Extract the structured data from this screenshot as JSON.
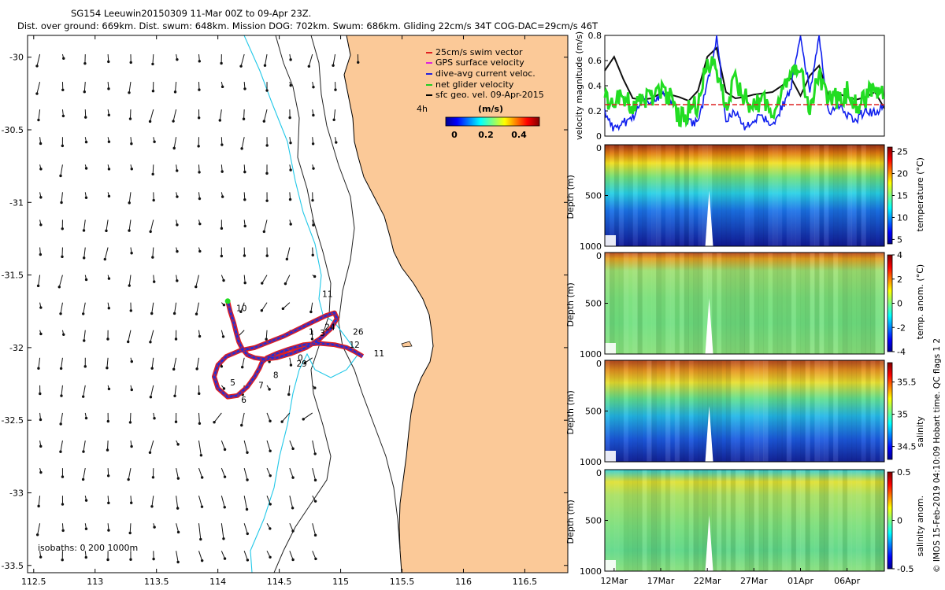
{
  "header": {
    "title": "SG154 Leeuwin20150309 11-Mar 00Z to 09-Apr 23Z.",
    "subtitle": "Dist. over ground: 669km. Dist. swum: 648km. Mission DOG: 702km. Swum: 686km. Gliding 22cm/s 34T COG-DAC=29cm/s 46T"
  },
  "side_note": "© IMOS 15-Feb-2019 04:10:09 Hobart time. QC flags 1  2",
  "colors": {
    "land": "#fbc998",
    "track_red": "#e02020",
    "track_blue": "#1f2fd8",
    "isobath_cyan": "#22c8e8",
    "vel_green": "#22dd22",
    "vel_blue": "#1020ee",
    "vel_red": "#dd2222",
    "vel_black": "#111111"
  },
  "chart_data": [
    {
      "id": "map",
      "type": "scatter",
      "title": "Glider track with surface geostrophic velocity vectors",
      "xlim": [
        112.45,
        116.85
      ],
      "ylim": [
        -33.55,
        -29.85
      ],
      "x_ticks": [
        112.5,
        113,
        113.5,
        114,
        114.5,
        115,
        115.5,
        116,
        116.5
      ],
      "x_tick_labels": [
        "112.5",
        "113",
        "113.5",
        "114",
        "114.5",
        "115",
        "115.5",
        "116",
        "116.5"
      ],
      "y_ticks": [
        -30,
        -30.5,
        -31,
        -31.5,
        -32,
        -32.5,
        -33,
        -33.5
      ],
      "y_tick_labels": [
        "-30",
        "-30.5",
        "-31",
        "-31.5",
        "-32",
        "-32.5",
        "-33",
        "-33.5"
      ],
      "legend": {
        "position": "top-right",
        "entries": [
          {
            "label": "25cm/s swim vector",
            "color": "#e02020"
          },
          {
            "label": "GPS surface velocity",
            "color": "#dd22dd"
          },
          {
            "label": "dive-avg current veloc.",
            "color": "#2222dd"
          },
          {
            "label": "net glider velocity",
            "color": "#22cc22"
          },
          {
            "label": "sfc geo. vel. 09-Apr-2015",
            "color": "#000000"
          }
        ],
        "time_step": "4h",
        "colorbar_title": "(m/s)",
        "colorbar_ticks": [
          "0",
          "0.2",
          "0.4"
        ],
        "colorbar_range": [
          0,
          0.5
        ]
      },
      "isobath_label": "isobaths: 0   200  1000m",
      "track_day_labels": [
        {
          "text": "10",
          "lon": 114.15,
          "lat": -31.75
        },
        {
          "text": "11",
          "lon": 114.85,
          "lat": -31.65
        },
        {
          "text": "24",
          "lon": 114.87,
          "lat": -31.88
        },
        {
          "text": "26",
          "lon": 115.1,
          "lat": -31.91
        },
        {
          "text": "3",
          "lon": 114.83,
          "lat": -31.92
        },
        {
          "text": "1",
          "lon": 114.74,
          "lat": -31.91
        },
        {
          "text": "12",
          "lon": 115.07,
          "lat": -32.0
        },
        {
          "text": "11",
          "lon": 115.27,
          "lat": -32.06
        },
        {
          "text": "29",
          "lon": 114.64,
          "lat": -32.13
        },
        {
          "text": "0",
          "lon": 114.65,
          "lat": -32.09
        },
        {
          "text": "5",
          "lon": 114.1,
          "lat": -32.26
        },
        {
          "text": "7",
          "lon": 114.33,
          "lat": -32.28
        },
        {
          "text": "8",
          "lon": 114.45,
          "lat": -32.21
        },
        {
          "text": "6",
          "lon": 114.19,
          "lat": -32.38
        }
      ],
      "track_lon": [
        114.08,
        114.1,
        114.13,
        114.15,
        114.17,
        114.2,
        114.24,
        114.3,
        114.38,
        114.48,
        114.6,
        114.72,
        114.83,
        114.92,
        114.97,
        114.95,
        114.88,
        114.78,
        114.66,
        114.54,
        114.42,
        114.3,
        114.18,
        114.07,
        114.0,
        113.97,
        114.0,
        114.08,
        114.16,
        114.24,
        114.3,
        114.34,
        114.36,
        114.4,
        114.48,
        114.58,
        114.7,
        114.82,
        114.95,
        115.05,
        115.12,
        115.18
      ],
      "track_lat": [
        -31.68,
        -31.75,
        -31.83,
        -31.9,
        -31.96,
        -32.01,
        -32.05,
        -32.07,
        -32.08,
        -32.07,
        -32.04,
        -32.0,
        -31.94,
        -31.87,
        -31.8,
        -31.76,
        -31.78,
        -31.82,
        -31.87,
        -31.92,
        -31.96,
        -32.0,
        -32.02,
        -32.06,
        -32.12,
        -32.2,
        -32.28,
        -32.34,
        -32.33,
        -32.27,
        -32.2,
        -32.14,
        -32.1,
        -32.07,
        -32.04,
        -32.01,
        -31.98,
        -31.97,
        -31.98,
        -32.0,
        -32.03,
        -32.06
      ]
    },
    {
      "id": "velocity",
      "type": "line",
      "xlabel": "",
      "ylabel": "velocity magnitude (m/s)",
      "ylim": [
        0,
        0.8
      ],
      "y_ticks": [
        "0",
        "0.2",
        "0.4",
        "0.6",
        "0.8"
      ],
      "xlim_days": [
        11,
        41
      ],
      "series": [
        {
          "name": "sfc geostrophic velocity",
          "color": "#111111",
          "x_days": [
            11,
            12,
            13,
            14,
            15,
            16,
            17,
            18,
            19,
            20,
            21,
            22,
            23,
            24,
            25,
            26,
            27,
            28,
            29,
            30,
            31,
            32,
            33,
            34,
            35,
            36,
            37,
            38,
            39,
            40,
            41
          ],
          "values": [
            0.52,
            0.63,
            0.45,
            0.3,
            0.29,
            0.3,
            0.34,
            0.33,
            0.31,
            0.28,
            0.36,
            0.63,
            0.7,
            0.35,
            0.3,
            0.31,
            0.33,
            0.34,
            0.35,
            0.4,
            0.46,
            0.32,
            0.48,
            0.56,
            0.32,
            0.34,
            0.31,
            0.29,
            0.31,
            0.35,
            0.22
          ]
        },
        {
          "name": "dive-avg current",
          "color": "#1020ee",
          "x_days": [
            11,
            12,
            13,
            14,
            15,
            16,
            17,
            18,
            19,
            20,
            21,
            22,
            23,
            24,
            25,
            26,
            27,
            28,
            29,
            30,
            31,
            32,
            33,
            34,
            35,
            36,
            37,
            38,
            39,
            40,
            41
          ],
          "values": [
            0.18,
            0.05,
            0.1,
            0.15,
            0.28,
            0.27,
            0.33,
            0.3,
            0.15,
            0.12,
            0.1,
            0.4,
            0.8,
            0.12,
            0.2,
            0.05,
            0.12,
            0.15,
            0.1,
            0.22,
            0.4,
            0.8,
            0.35,
            0.8,
            0.2,
            0.25,
            0.18,
            0.12,
            0.22,
            0.18,
            0.25
          ]
        },
        {
          "name": "net glider velocity",
          "color": "#22dd22",
          "x_days": [
            11,
            12,
            13,
            14,
            15,
            16,
            17,
            18,
            19,
            20,
            21,
            22,
            23,
            24,
            25,
            26,
            27,
            28,
            29,
            30,
            31,
            32,
            33,
            34,
            35,
            36,
            37,
            38,
            39,
            40,
            41
          ],
          "values": [
            0.3,
            0.25,
            0.32,
            0.2,
            0.3,
            0.28,
            0.38,
            0.3,
            0.12,
            0.2,
            0.25,
            0.6,
            0.55,
            0.2,
            0.45,
            0.3,
            0.22,
            0.3,
            0.15,
            0.4,
            0.5,
            0.6,
            0.2,
            0.5,
            0.3,
            0.3,
            0.35,
            0.25,
            0.3,
            0.4,
            0.35
          ]
        },
        {
          "name": "swim vector",
          "color": "#dd2222",
          "x_days": [
            11,
            41
          ],
          "values": [
            0.25,
            0.25
          ]
        }
      ]
    },
    {
      "id": "temperature",
      "type": "heatmap",
      "ylabel": "Depth (m)",
      "y_ticks": [
        "0",
        "500",
        "1000"
      ],
      "ylim": [
        1000,
        0
      ],
      "colorbar_label": "temperature (°C)",
      "colorbar_ticks": [
        "25",
        "20",
        "15",
        "10",
        "5"
      ],
      "colorbar_range": [
        4,
        26
      ]
    },
    {
      "id": "temp_anomaly",
      "type": "heatmap",
      "ylabel": "Depth (m)",
      "y_ticks": [
        "0",
        "500",
        "1000"
      ],
      "ylim": [
        1000,
        0
      ],
      "colorbar_label": "temp. anom. (°C)",
      "colorbar_ticks": [
        "4",
        "2",
        "0",
        "-2",
        "-4"
      ],
      "colorbar_range": [
        -4,
        4
      ]
    },
    {
      "id": "salinity",
      "type": "heatmap",
      "ylabel": "Depth (m)",
      "y_ticks": [
        "0",
        "500",
        "1000"
      ],
      "ylim": [
        1000,
        0
      ],
      "colorbar_label": "salinity",
      "colorbar_ticks": [
        "35.5",
        "35",
        "34.5"
      ],
      "colorbar_range": [
        34.3,
        35.8
      ]
    },
    {
      "id": "sal_anomaly",
      "type": "heatmap",
      "ylabel": "Depth (m)",
      "y_ticks": [
        "0",
        "500",
        "1000"
      ],
      "ylim": [
        1000,
        0
      ],
      "colorbar_label": "salinity anom.",
      "colorbar_ticks": [
        "0.5",
        "0",
        "-0.5"
      ],
      "colorbar_range": [
        -0.5,
        0.5
      ],
      "x_tick_labels": [
        "12Mar",
        "17Mar",
        "22Mar",
        "27Mar",
        "01Apr",
        "06Apr"
      ],
      "x_tick_days": [
        12,
        17,
        22,
        27,
        32,
        37
      ]
    }
  ]
}
